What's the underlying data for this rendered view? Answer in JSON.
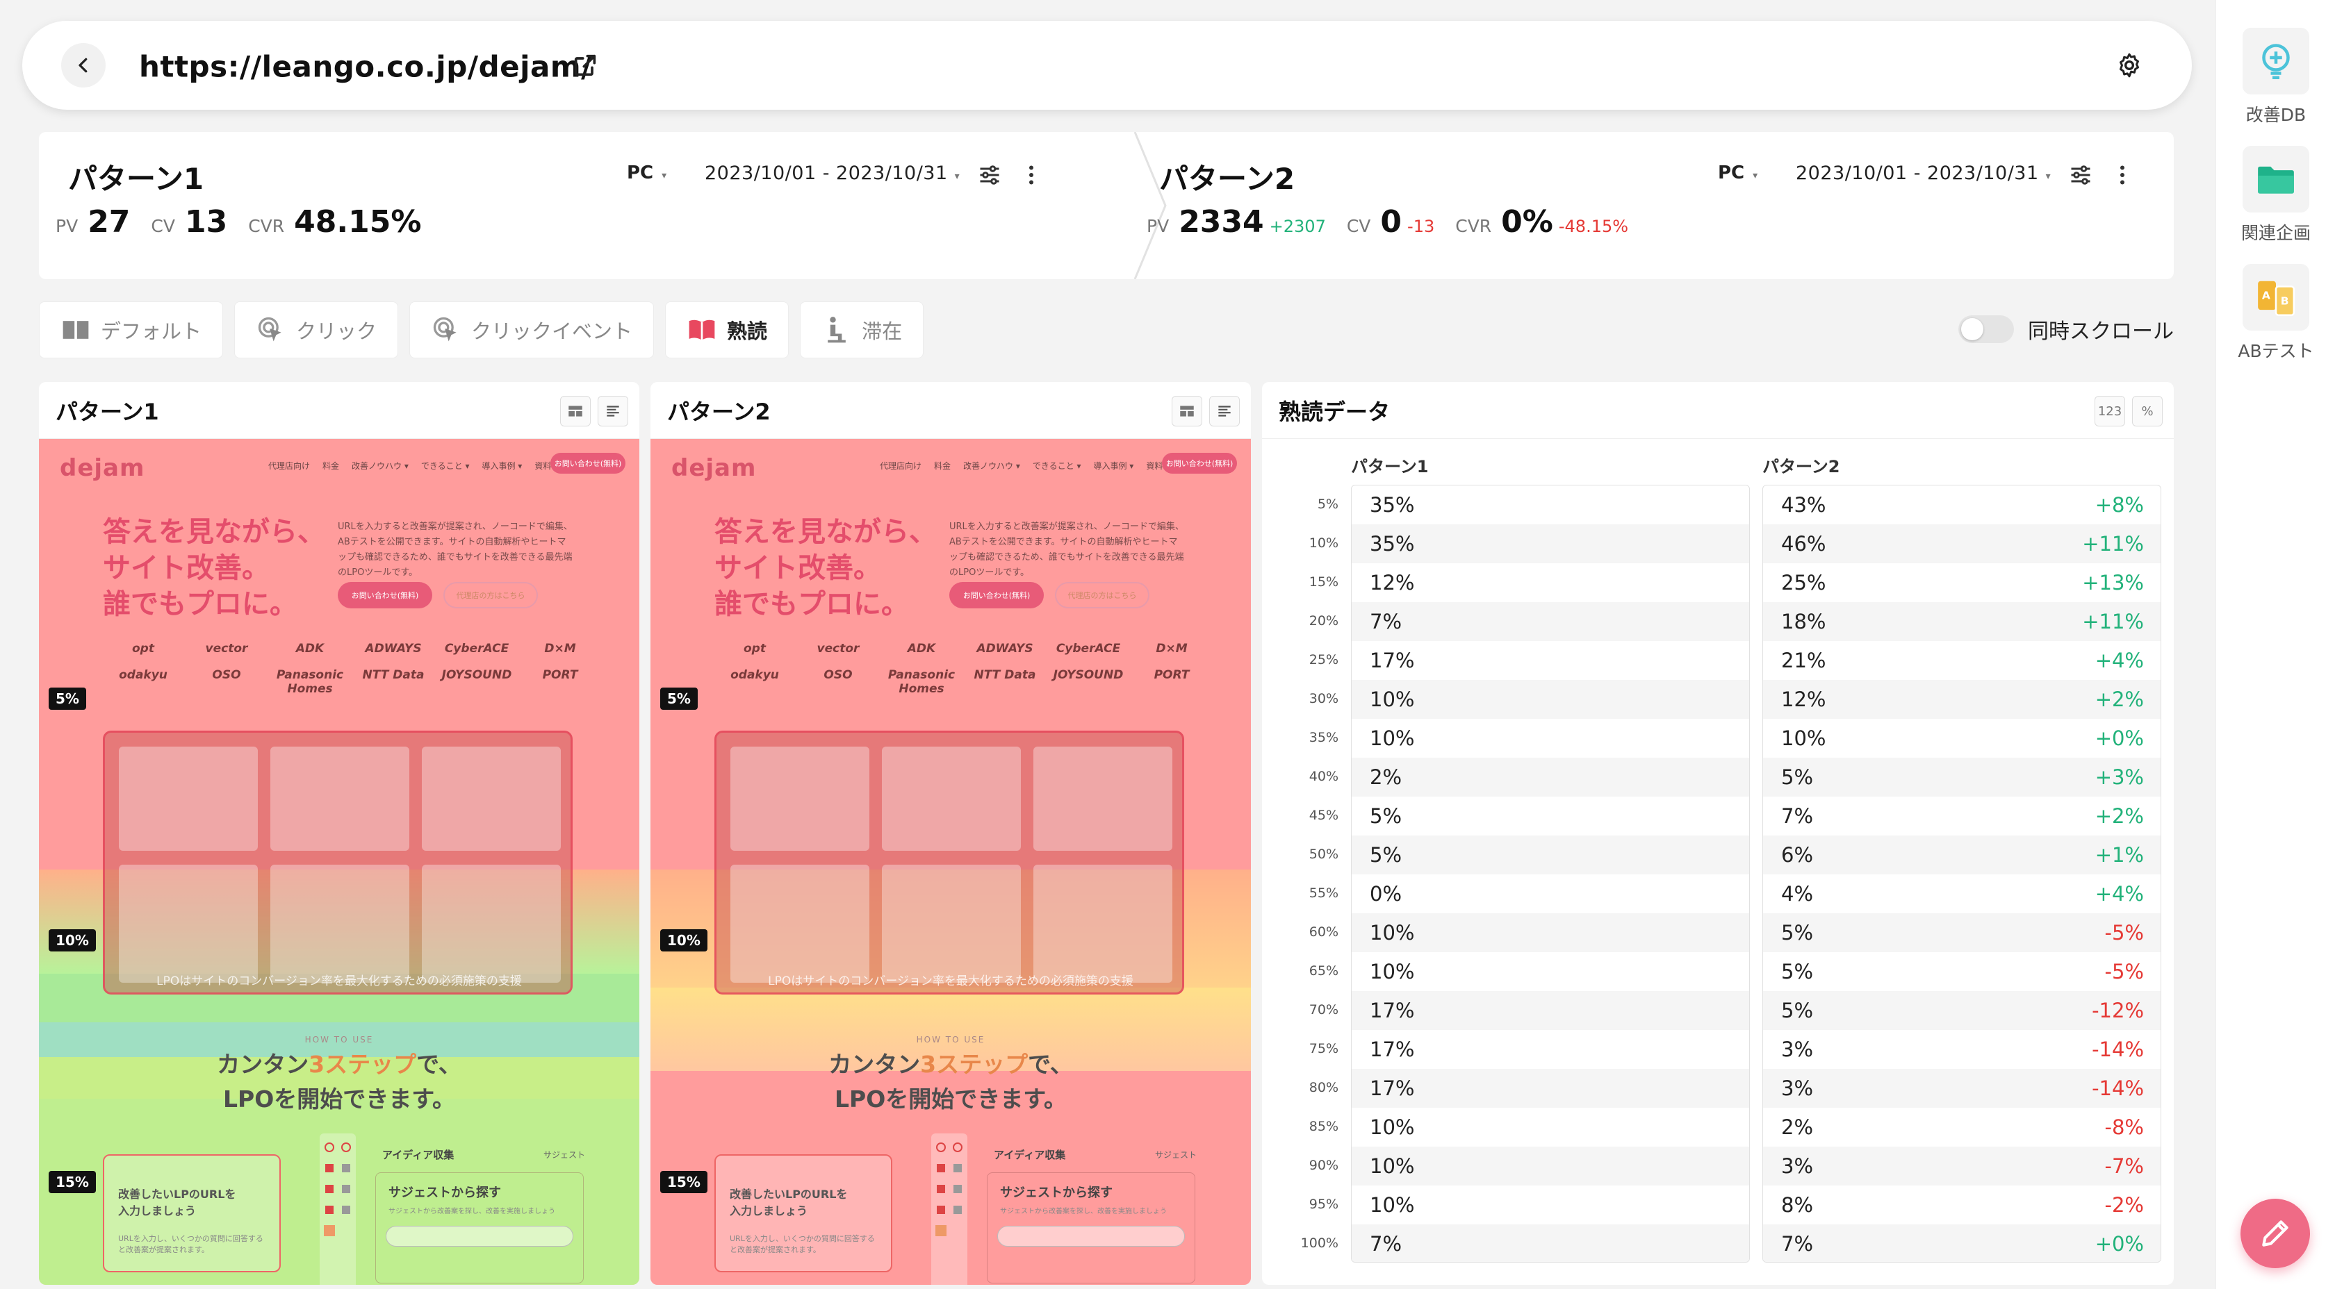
{
  "url_bar": {
    "url": "https://leango.co.jp/dejam/"
  },
  "summary": {
    "pattern1": {
      "title": "パターン1",
      "pv_label": "PV",
      "pv": "27",
      "cv_label": "CV",
      "cv": "13",
      "cvr_label": "CVR",
      "cvr": "48.15%",
      "device": "PC",
      "date_range": "2023/10/01 - 2023/10/31"
    },
    "pattern2": {
      "title": "パターン2",
      "pv_label": "PV",
      "pv": "2334",
      "pv_delta": "+2307",
      "cv_label": "CV",
      "cv": "0",
      "cv_delta": "-13",
      "cvr_label": "CVR",
      "cvr": "0%",
      "cvr_delta": "-48.15%",
      "device": "PC",
      "date_range": "2023/10/01 - 2023/10/31"
    }
  },
  "tabs": [
    {
      "label": "デフォルト",
      "icon": "columns-icon"
    },
    {
      "label": "クリック",
      "icon": "click-icon"
    },
    {
      "label": "クリックイベント",
      "icon": "click-event-icon"
    },
    {
      "label": "熟読",
      "icon": "book-icon",
      "active": true
    },
    {
      "label": "滞在",
      "icon": "stay-icon"
    }
  ],
  "sync_scroll": {
    "label": "同時スクロール",
    "on": false
  },
  "panels": {
    "p1": {
      "title": "パターン1",
      "badges": [
        "5%",
        "10%",
        "15%"
      ]
    },
    "p2": {
      "title": "パターン2",
      "badges": [
        "5%",
        "10%",
        "15%"
      ]
    },
    "data": {
      "title": "熟読データ",
      "btn_number": "123",
      "btn_percent": "%"
    }
  },
  "page_mock": {
    "logo": "dejam",
    "nav": [
      "代理店向け",
      "料金",
      "改善ノウハウ ▾",
      "できること ▾",
      "導入事例 ▾",
      "資料ツール ▾"
    ],
    "nav_button": "お問い合わせ(無料)",
    "hero": [
      "答えを見ながら、",
      "サイト改善。",
      "誰でもプロに。"
    ],
    "desc": "URLを入力すると改善案が提案され、ノーコードで編集、ABテストを公開できます。サイトの自動解析やヒートマップも確認できるため、誰でもサイトを改善できる最先端のLPOツールです。",
    "btn_primary": "お問い合わせ(無料)",
    "btn_secondary": "代理店の方はこちら",
    "logos": [
      "opt",
      "vector",
      "ADK",
      "ADWAYS",
      "CyberACE",
      "D×M",
      "odakyu",
      "OSO",
      "Panasonic Homes",
      "NTT Data",
      "JOYSOUND",
      "PORT"
    ],
    "caption": "LPOはサイトのコンバージョン率を最大化するための必須施策の支援",
    "howto": "HOW TO USE",
    "steps_pre": "カンタン",
    "steps_hl": "3ステップ",
    "steps_post": "で、",
    "steps_line2": "LPOを開始できます。",
    "card_title": [
      "改善したいLPのURLを",
      "入力しましょう"
    ],
    "card_sub": "URLを入力し、いくつかの質問に回答すると改善案が提案されます。",
    "app_title": "アイディア収集",
    "app_tab": "サジェスト",
    "app_suggest": "サジェストから探す",
    "app_suggest_desc": "サジェストから改善案を探し、改善を実施しましょう"
  },
  "scroll_data": {
    "header_p1": "パターン1",
    "header_p2": "パターン2",
    "rows": [
      {
        "depth": "5%",
        "p1": "35%",
        "p2": "43%",
        "delta": "+8%",
        "sign": "pos"
      },
      {
        "depth": "10%",
        "p1": "35%",
        "p2": "46%",
        "delta": "+11%",
        "sign": "pos"
      },
      {
        "depth": "15%",
        "p1": "12%",
        "p2": "25%",
        "delta": "+13%",
        "sign": "pos"
      },
      {
        "depth": "20%",
        "p1": "7%",
        "p2": "18%",
        "delta": "+11%",
        "sign": "pos"
      },
      {
        "depth": "25%",
        "p1": "17%",
        "p2": "21%",
        "delta": "+4%",
        "sign": "pos"
      },
      {
        "depth": "30%",
        "p1": "10%",
        "p2": "12%",
        "delta": "+2%",
        "sign": "pos"
      },
      {
        "depth": "35%",
        "p1": "10%",
        "p2": "10%",
        "delta": "+0%",
        "sign": "pos"
      },
      {
        "depth": "40%",
        "p1": "2%",
        "p2": "5%",
        "delta": "+3%",
        "sign": "pos"
      },
      {
        "depth": "45%",
        "p1": "5%",
        "p2": "7%",
        "delta": "+2%",
        "sign": "pos"
      },
      {
        "depth": "50%",
        "p1": "5%",
        "p2": "6%",
        "delta": "+1%",
        "sign": "pos"
      },
      {
        "depth": "55%",
        "p1": "0%",
        "p2": "4%",
        "delta": "+4%",
        "sign": "pos"
      },
      {
        "depth": "60%",
        "p1": "10%",
        "p2": "5%",
        "delta": "-5%",
        "sign": "neg"
      },
      {
        "depth": "65%",
        "p1": "10%",
        "p2": "5%",
        "delta": "-5%",
        "sign": "neg"
      },
      {
        "depth": "70%",
        "p1": "17%",
        "p2": "5%",
        "delta": "-12%",
        "sign": "neg"
      },
      {
        "depth": "75%",
        "p1": "17%",
        "p2": "3%",
        "delta": "-14%",
        "sign": "neg"
      },
      {
        "depth": "80%",
        "p1": "17%",
        "p2": "3%",
        "delta": "-14%",
        "sign": "neg"
      },
      {
        "depth": "85%",
        "p1": "10%",
        "p2": "2%",
        "delta": "-8%",
        "sign": "neg"
      },
      {
        "depth": "90%",
        "p1": "10%",
        "p2": "3%",
        "delta": "-7%",
        "sign": "neg"
      },
      {
        "depth": "95%",
        "p1": "10%",
        "p2": "8%",
        "delta": "-2%",
        "sign": "neg"
      },
      {
        "depth": "100%",
        "p1": "7%",
        "p2": "7%",
        "delta": "+0%",
        "sign": "pos"
      }
    ]
  },
  "sidebar": {
    "items": [
      {
        "label": "改善DB",
        "icon": "lightbulb-plus-icon"
      },
      {
        "label": "関連企画",
        "icon": "folder-icon"
      },
      {
        "label": "ABテスト",
        "icon": "ab-test-icon"
      }
    ]
  },
  "colors": {
    "accent": "#ef6b86",
    "positive": "#22b27a",
    "negative": "#e53935"
  }
}
